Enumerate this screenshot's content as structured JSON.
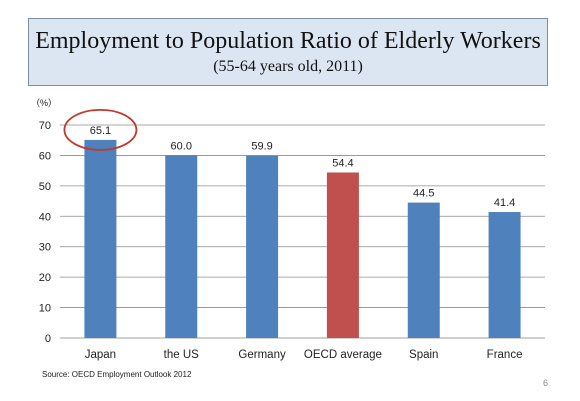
{
  "slide": {
    "title": "Employment to Population Ratio of Elderly Workers",
    "subtitle": "(55-64 years old, 2011)",
    "unit_label": "（%）",
    "source": "Source: OECD Employment Outlook 2012",
    "page_number": "6"
  },
  "colors": {
    "default_bar": "#4f81bd",
    "highlight_bar": "#c0504d",
    "circle": "#c0392b",
    "title_bg": "#dce6f2"
  },
  "chart_data": {
    "type": "bar",
    "categories": [
      "Japan",
      "the US",
      "Germany",
      "OECD average",
      "Spain",
      "France"
    ],
    "values": [
      65.1,
      60.0,
      59.9,
      54.4,
      44.5,
      41.4
    ],
    "value_labels": [
      "65.1",
      "60.0",
      "59.9",
      "54.4",
      "44.5",
      "41.4"
    ],
    "highlight_category": "OECD average",
    "circled_category": "Japan",
    "title": "",
    "xlabel": "",
    "ylabel": "",
    "ylim": [
      0,
      70
    ],
    "yticks": [
      0,
      10,
      20,
      30,
      40,
      50,
      60,
      70
    ],
    "grid": true,
    "legend": "none"
  }
}
